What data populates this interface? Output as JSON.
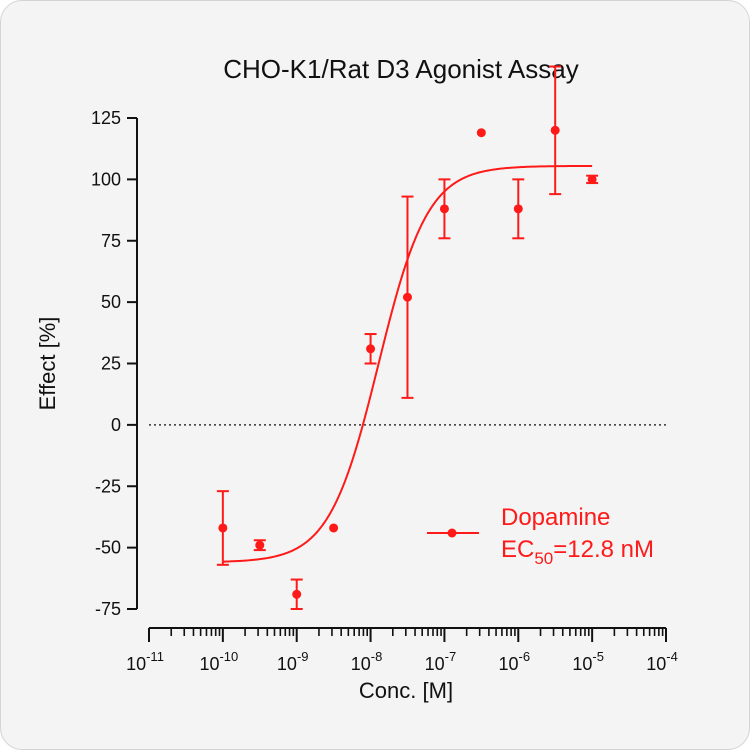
{
  "chart_data": {
    "type": "scatter",
    "title": "CHO-K1/Rat D3 Agonist Assay",
    "xlabel": "Conc. [M]",
    "ylabel": "Effect  [%]",
    "xscale": "log",
    "xlim": [
      1e-11,
      0.0001
    ],
    "ylim": [
      -75,
      125
    ],
    "yticks": [
      -75,
      -50,
      -25,
      0,
      25,
      50,
      75,
      100,
      125
    ],
    "xtick_exponents": [
      "-11",
      "-10",
      "-9",
      "-8",
      "-7",
      "-6",
      "-5",
      "-4"
    ],
    "xtick_base": "10",
    "zero_reference_line": true,
    "color": "#ff1a1a",
    "series": [
      {
        "name": "Dopamine",
        "points": [
          {
            "x": 1e-10,
            "y": -42,
            "err": 15
          },
          {
            "x": 3.16e-10,
            "y": -49,
            "err": 2
          },
          {
            "x": 1e-09,
            "y": -69,
            "err": 6
          },
          {
            "x": 3.16e-09,
            "y": -42,
            "err": 0
          },
          {
            "x": 1e-08,
            "y": 31,
            "err": 6
          },
          {
            "x": 3.16e-08,
            "y": 52,
            "err": 41
          },
          {
            "x": 1e-07,
            "y": 88,
            "err": 12
          },
          {
            "x": 3.16e-07,
            "y": 119,
            "err": 0
          },
          {
            "x": 1e-06,
            "y": 88,
            "err": 12
          },
          {
            "x": 3.16e-06,
            "y": 120,
            "err": 26
          },
          {
            "x": 1e-05,
            "y": 100,
            "err": 1.5
          }
        ],
        "fit": {
          "model": "4PL",
          "bottom": -56,
          "top": 105.5,
          "ec50": 1.28e-08,
          "hill": 1.3,
          "x_range": [
            1e-10,
            1e-05
          ]
        }
      }
    ],
    "legend": {
      "placement": "lower-right",
      "entry": "Dopamine",
      "ec_label": "EC",
      "ec_subscript": "50",
      "ec_value": "=12.8 nM"
    }
  }
}
